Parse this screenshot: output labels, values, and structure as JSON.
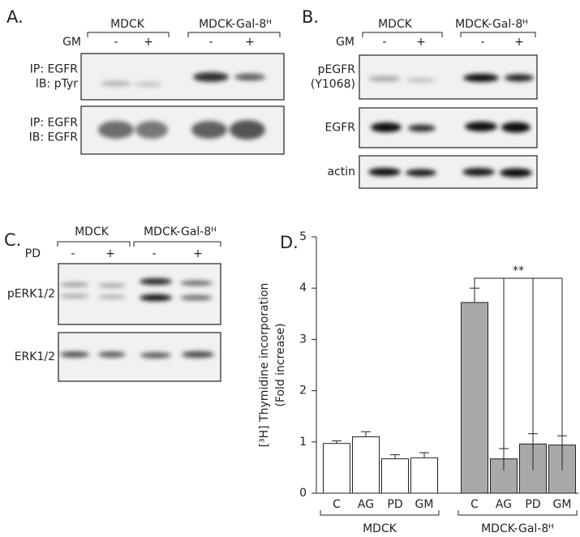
{
  "panel_a": {
    "letter": "A.",
    "groups": [
      "MDCK",
      "MDCK-Gal-8ᴴ"
    ],
    "treatment": "GM",
    "conditions": [
      "-",
      "+",
      "-",
      "+"
    ],
    "rows": [
      [
        "IP: EGFR",
        "IB: pTyr"
      ],
      [
        "IP: EGFR",
        "IB: EGFR"
      ]
    ]
  },
  "panel_b": {
    "letter": "B.",
    "groups": [
      "MDCK",
      "MDCK-Gal-8ᴴ"
    ],
    "treatment": "GM",
    "conditions": [
      "-",
      "+",
      "-",
      "+"
    ],
    "rows": [
      [
        "pEGFR",
        "(Y1068)"
      ],
      [
        "EGFR"
      ],
      [
        "actin"
      ]
    ]
  },
  "panel_c": {
    "letter": "C.",
    "groups": [
      "MDCK",
      "MDCK-Gal-8ᴴ"
    ],
    "treatment": "PD",
    "conditions": [
      "-",
      "+",
      "-",
      "+"
    ],
    "rows": [
      [
        "pERK1/2"
      ],
      [
        "ERK1/2"
      ]
    ]
  },
  "panel_d": {
    "letter": "D."
  },
  "chart_data": {
    "type": "bar",
    "y_label": [
      "[³H] Thymidine incorporation",
      "(Fold increase)"
    ],
    "categories": [
      "C",
      "AG",
      "PD",
      "GM"
    ],
    "series": [
      {
        "name": "MDCK",
        "color": "#ffffff",
        "values": [
          0.97,
          1.1,
          0.67,
          0.69
        ],
        "errors": [
          0.05,
          0.1,
          0.08,
          0.1
        ]
      },
      {
        "name": "MDCK-Gal-8ᴴ",
        "color": "#a9a9a9",
        "values": [
          3.72,
          0.67,
          0.96,
          0.94
        ],
        "errors": [
          0.28,
          0.2,
          0.2,
          0.18
        ]
      }
    ],
    "ylim": [
      0,
      5
    ],
    "yticks": [
      0,
      1,
      2,
      3,
      4,
      5
    ],
    "annotation": "**"
  }
}
